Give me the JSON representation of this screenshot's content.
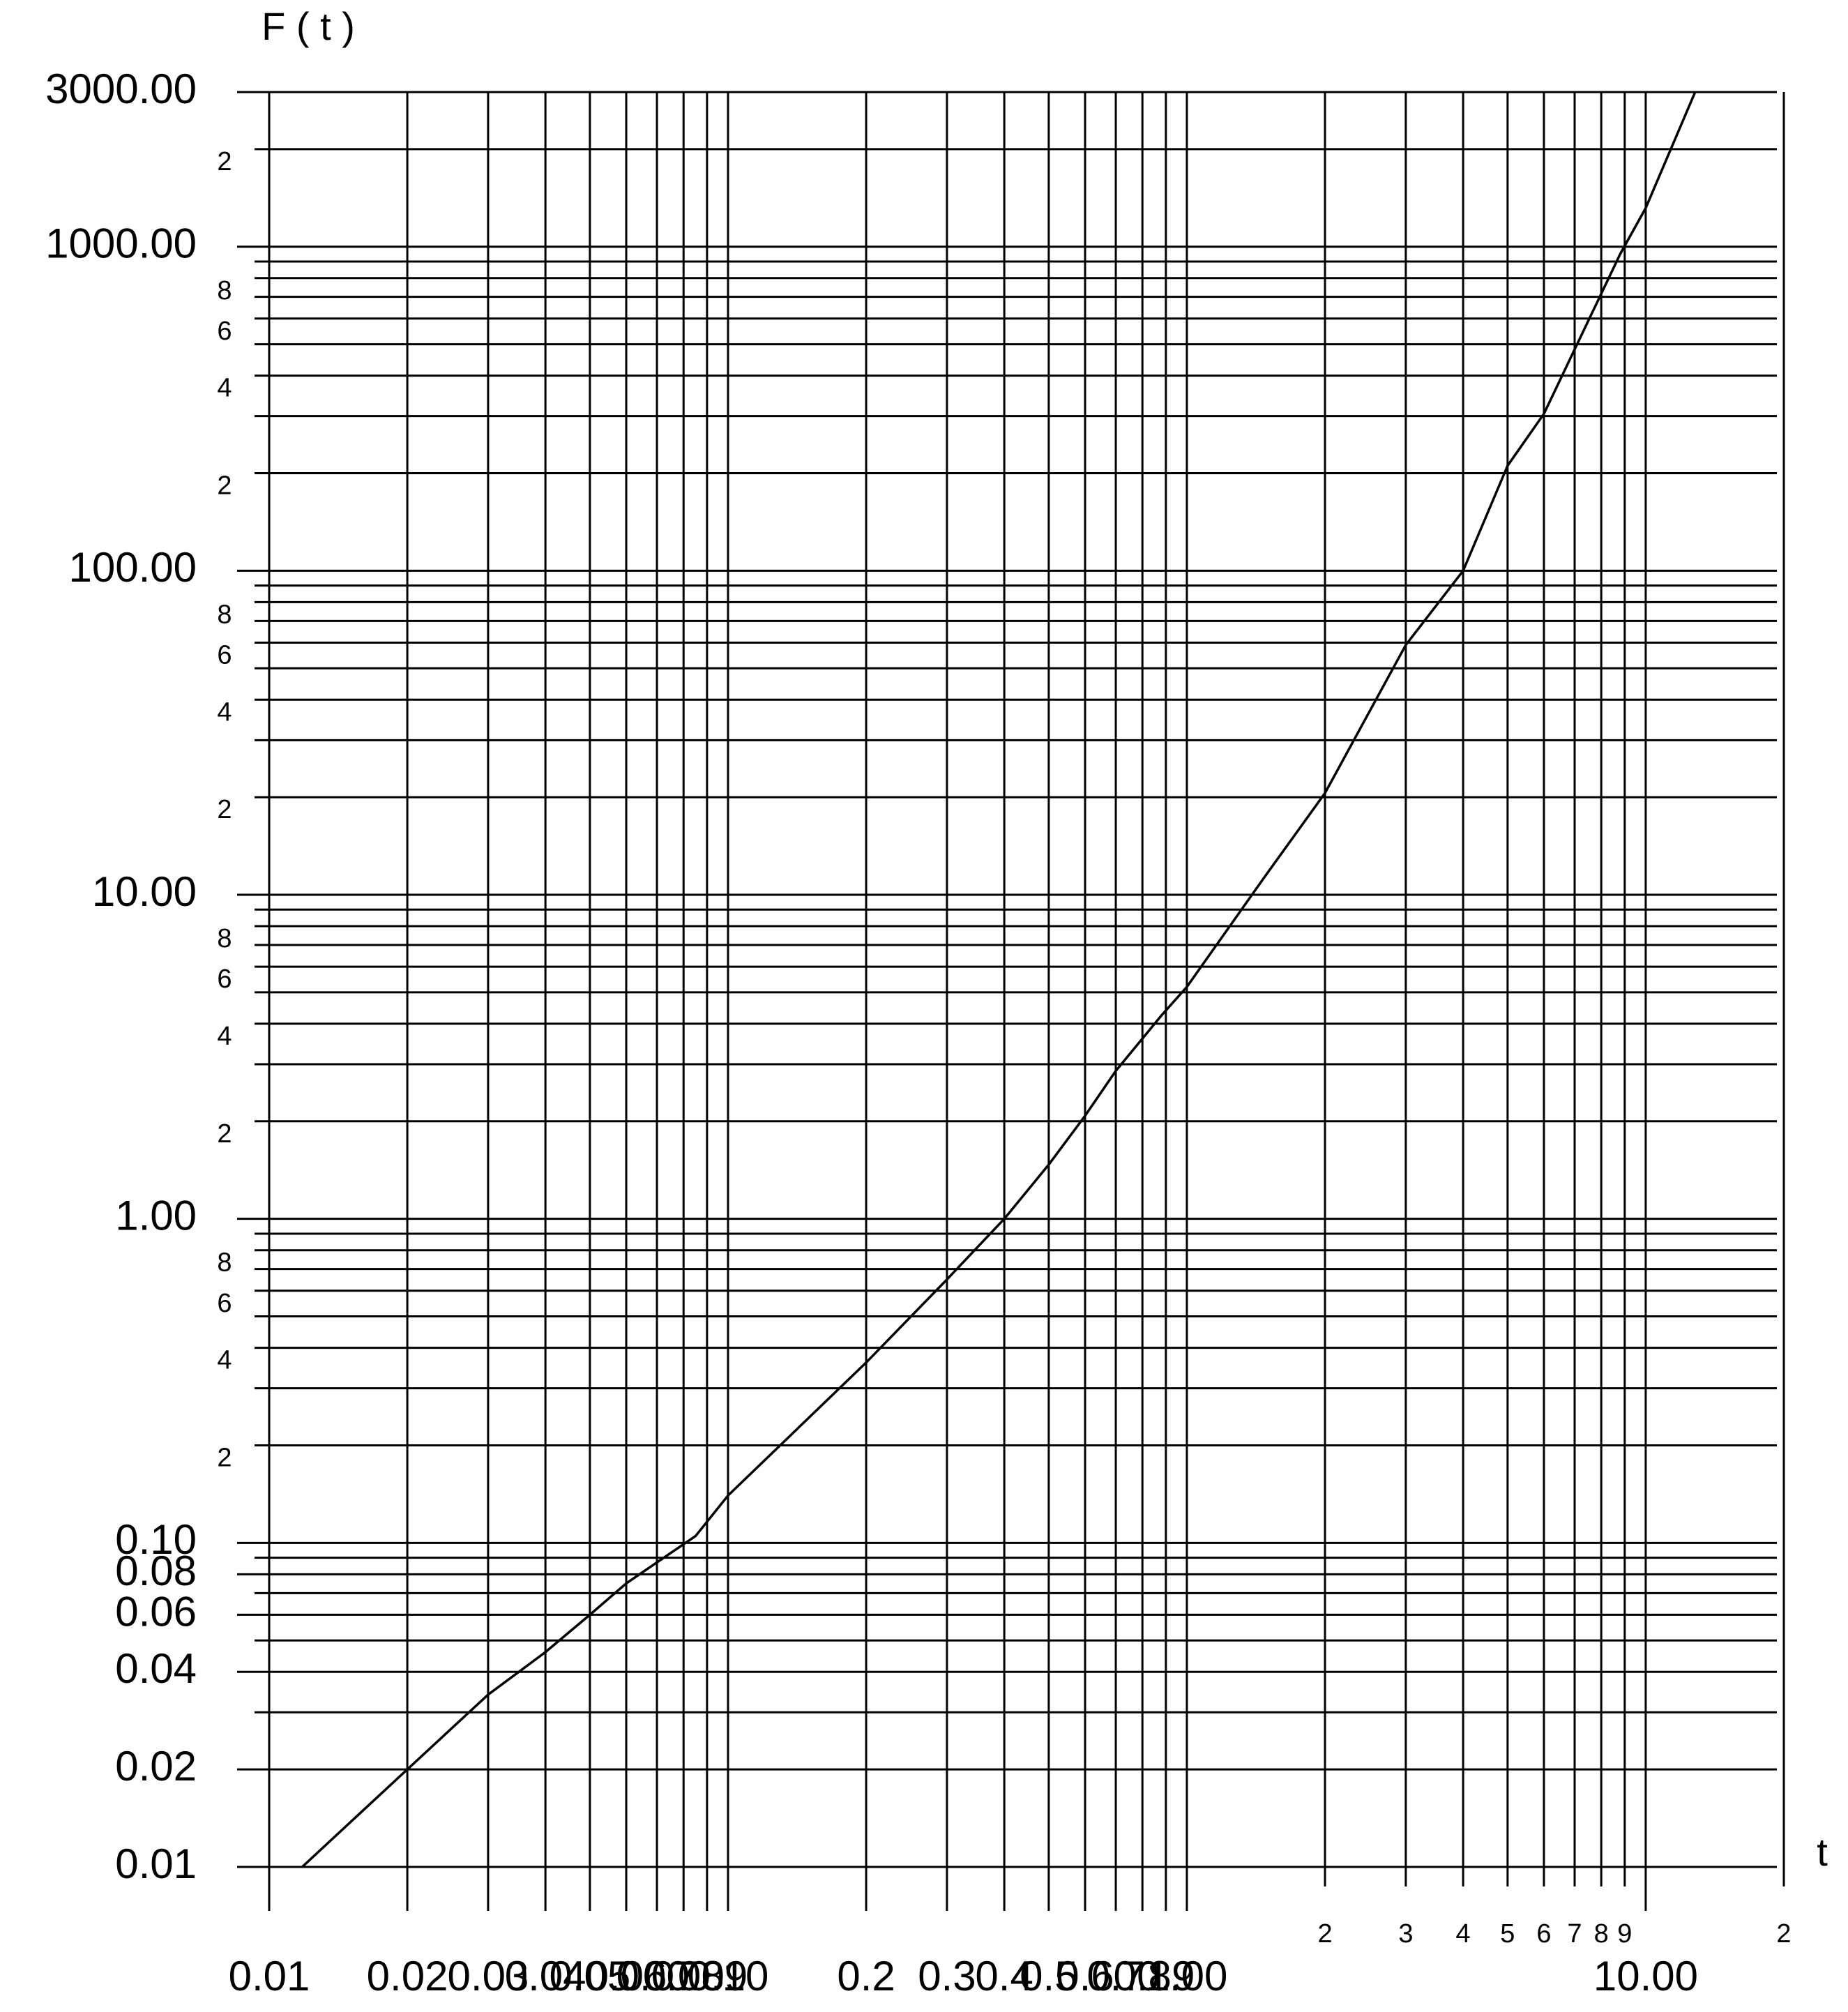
{
  "chart_data": {
    "type": "line",
    "x_label": "t",
    "y_label": "F ( t )",
    "xscale": "log",
    "yscale": "log",
    "grid": true,
    "xlim": [
      0.01,
      20
    ],
    "ylim": [
      0.01,
      3000
    ],
    "xticks": [
      0.01,
      0.02,
      0.03,
      0.04,
      0.05,
      0.06,
      0.07,
      0.08,
      0.09,
      {
        "value": 0.1,
        "label": "0.10"
      },
      0.2,
      0.3,
      0.4,
      0.5,
      0.6,
      0.7,
      0.8,
      0.9,
      {
        "value": 1,
        "label": "1.00"
      },
      2,
      3,
      4,
      5,
      6,
      7,
      8,
      9,
      {
        "value": 10,
        "label": "10.00"
      },
      {
        "value": 20,
        "label": "2"
      }
    ],
    "yticks": [
      0.01,
      0.02,
      0.04,
      0.06,
      0.08,
      {
        "value": 0.1,
        "label": "0.10"
      },
      {
        "value": 0.2,
        "label": "2"
      },
      {
        "value": 0.4,
        "label": "4"
      },
      {
        "value": 0.6,
        "label": "6"
      },
      {
        "value": 0.8,
        "label": "8"
      },
      {
        "value": 1,
        "label": "1.00"
      },
      2,
      4,
      6,
      8,
      {
        "value": 10,
        "label": "10.00"
      },
      {
        "value": 20,
        "label": "2"
      },
      {
        "value": 40,
        "label": "4"
      },
      {
        "value": 60,
        "label": "6"
      },
      {
        "value": 80,
        "label": "8"
      },
      {
        "value": 100,
        "label": "100.00"
      },
      {
        "value": 200,
        "label": "2"
      },
      {
        "value": 400,
        "label": "4"
      },
      {
        "value": 600,
        "label": "6"
      },
      {
        "value": 800,
        "label": "8"
      },
      {
        "value": 1000,
        "label": "1000.00"
      },
      {
        "value": 2000,
        "label": "2"
      },
      {
        "value": 3000,
        "label": "3000.00"
      }
    ],
    "yminor": [
      0.03,
      0.05,
      0.07,
      0.09,
      0.3,
      0.5,
      0.7,
      0.9,
      3,
      5,
      7,
      9,
      30,
      50,
      70,
      90,
      300,
      500,
      700,
      900
    ],
    "series": [
      {
        "color": "#000000",
        "x": [
          0.0118,
          0.02,
          0.03,
          0.04,
          0.05,
          0.06,
          0.085,
          0.1,
          0.2,
          0.3,
          0.4,
          0.5,
          0.6,
          0.7,
          0.88,
          1,
          1.48,
          2,
          3,
          4,
          5,
          6,
          7,
          8.8,
          10,
          12.8
        ],
        "values": [
          0.01,
          0.02,
          0.034,
          0.046,
          0.06,
          0.075,
          0.105,
          0.14,
          0.36,
          0.65,
          1.0,
          1.47,
          2.08,
          2.86,
          4.24,
          5.2,
          11.4,
          20.6,
          59,
          100,
          211,
          305,
          482,
          950,
          1316,
          2990
        ]
      }
    ]
  }
}
